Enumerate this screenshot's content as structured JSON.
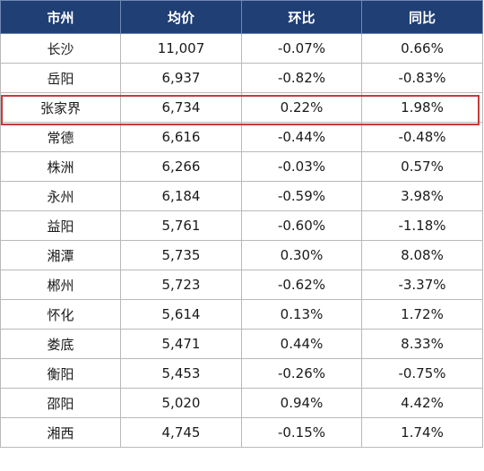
{
  "table": {
    "headers": [
      "市州",
      "均价",
      "环比",
      "同比"
    ],
    "rows": [
      [
        "长沙",
        "11,007",
        "-0.07%",
        "0.66%"
      ],
      [
        "岳阳",
        "6,937",
        "-0.82%",
        "-0.83%"
      ],
      [
        "张家界",
        "6,734",
        "0.22%",
        "1.98%"
      ],
      [
        "常德",
        "6,616",
        "-0.44%",
        "-0.48%"
      ],
      [
        "株洲",
        "6,266",
        "-0.03%",
        "0.57%"
      ],
      [
        "永州",
        "6,184",
        "-0.59%",
        "3.98%"
      ],
      [
        "益阳",
        "5,761",
        "-0.60%",
        "-1.18%"
      ],
      [
        "湘潭",
        "5,735",
        "0.30%",
        "8.08%"
      ],
      [
        "郴州",
        "5,723",
        "-0.62%",
        "-3.37%"
      ],
      [
        "怀化",
        "5,614",
        "0.13%",
        "1.72%"
      ],
      [
        "娄底",
        "5,471",
        "0.44%",
        "8.33%"
      ],
      [
        "衡阳",
        "5,453",
        "-0.26%",
        "-0.75%"
      ],
      [
        "邵阳",
        "5,020",
        "0.94%",
        "4.42%"
      ],
      [
        "湘西",
        "4,745",
        "-0.15%",
        "1.74%"
      ]
    ],
    "highlighted_row": 2
  },
  "colors": {
    "header_bg": "#1f3f75",
    "header_text": "#ffffff",
    "highlight_border": "#c83a3a",
    "grid": "#b9b9b9"
  }
}
